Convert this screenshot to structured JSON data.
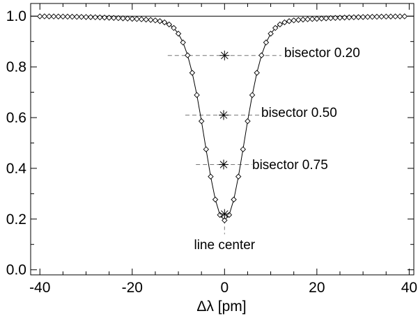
{
  "chart_data": {
    "type": "line",
    "title": "",
    "xlabel": "Δλ [pm]",
    "ylabel": "",
    "xlim": [
      -42,
      41
    ],
    "ylim": [
      -0.02,
      1.05
    ],
    "grid": false,
    "x_ticks": [
      -40,
      -20,
      0,
      20,
      40
    ],
    "x_tick_labels": [
      "-40",
      "-20",
      "0",
      "20",
      "40"
    ],
    "y_ticks": [
      0.0,
      0.2,
      0.4,
      0.6,
      0.8,
      1.0
    ],
    "y_tick_labels": [
      "0.0",
      "0.2",
      "0.4",
      "0.6",
      "0.8",
      "1.0"
    ],
    "line_profile": {
      "x_start": -40,
      "x_end": 39.5,
      "step": 1,
      "continuum": 1.0,
      "depth": 0.78,
      "sigma": 4.25,
      "wing_depth": 0.025,
      "wing_sigma": 15
    },
    "continuum_level": 1.0,
    "bisectors": [
      {
        "label": "bisector 0.20",
        "x": 0,
        "y": 0.845,
        "x_left": -12.3,
        "x_right": 12.3
      },
      {
        "label": "bisector 0.50",
        "x": -0.2,
        "y": 0.61,
        "x_left": -8.5,
        "x_right": 8.0
      },
      {
        "label": "bisector 0.75",
        "x": -0.2,
        "y": 0.415,
        "x_left": -6.2,
        "x_right": 6.0
      }
    ],
    "line_center": {
      "label": "line center",
      "x": 0,
      "y": 0.22,
      "y_bottom": 0.14
    }
  }
}
